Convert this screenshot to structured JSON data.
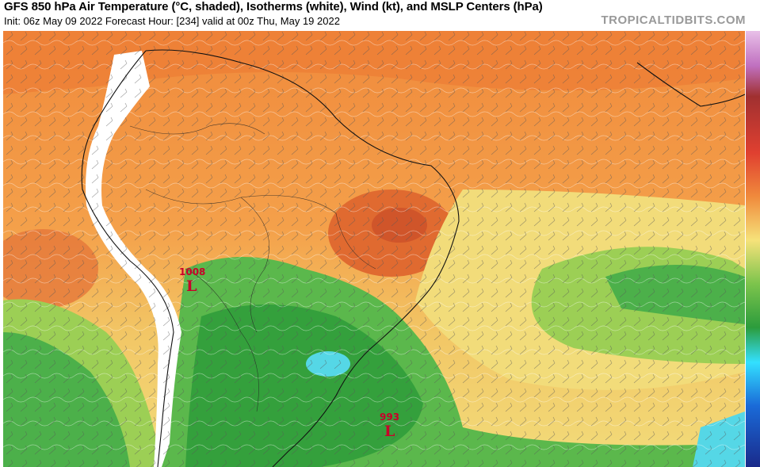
{
  "header": {
    "title": "GFS 850 hPa Air Temperature (°C, shaded), Isotherms (white), Wind (kt), and MSLP Centers (hPa)",
    "subtitle": "Init: 06z May 09 2022   Forecast Hour: [234]   valid at 00z Thu, May 19 2022",
    "brand": "TROPICALTIDBITS.COM"
  },
  "pressure_centers": [
    {
      "value": "1008",
      "letter": "L"
    },
    {
      "value": "993",
      "letter": "L"
    }
  ],
  "colors": {
    "hot": "#d9622b",
    "warm": "#f08a3c",
    "mild": "#f4b45a",
    "pale": "#f2dc7a",
    "cool": "#9ccf55",
    "green": "#4cb04a",
    "darkgreen": "#34a03c",
    "cyan": "#55d7e6",
    "terrain": "#ffffff",
    "label": "#c8002a"
  }
}
